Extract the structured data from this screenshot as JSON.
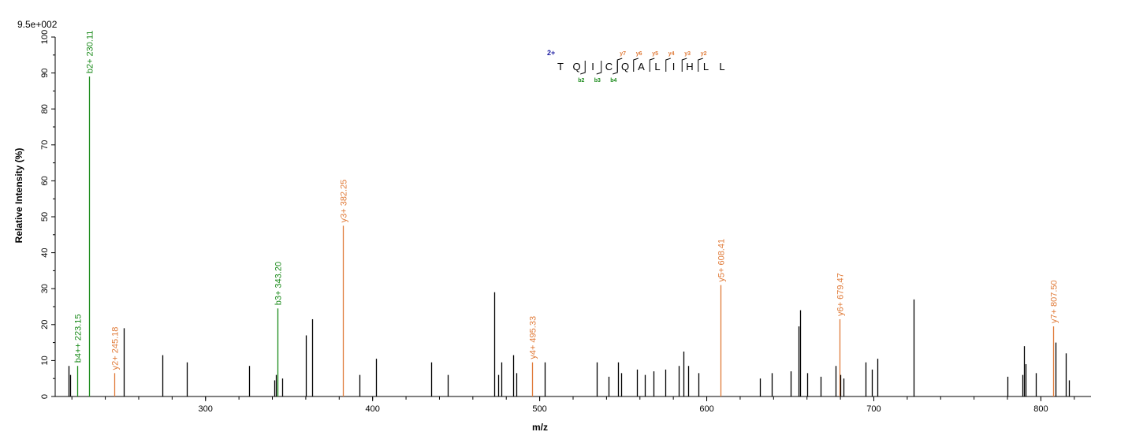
{
  "chart_data": {
    "type": "bar",
    "subtype": "mass-spectrum",
    "scale_label": "9.5e+002",
    "xlabel": "m/z",
    "ylabel": "Relative   Intensity (%)",
    "xlim": [
      210,
      830
    ],
    "ylim": [
      0,
      100
    ],
    "x_ticks": [
      300,
      400,
      500,
      600,
      700,
      800
    ],
    "y_ticks": [
      0,
      10,
      20,
      30,
      40,
      50,
      60,
      70,
      80,
      90,
      100
    ],
    "colors": {
      "b_ion": "#1a8a1a",
      "y_ion": "#e07b39",
      "unassigned": "#000000",
      "charge": "#1a1aa0"
    },
    "peaks": [
      {
        "mz": 218.0,
        "intensity": 8.5,
        "type": "unassigned"
      },
      {
        "mz": 219.0,
        "intensity": 6.0,
        "type": "unassigned"
      },
      {
        "mz": 223.15,
        "intensity": 8.5,
        "type": "b",
        "label": "b4++ 223.15"
      },
      {
        "mz": 230.11,
        "intensity": 89.0,
        "type": "b",
        "label": "b2+ 230.11"
      },
      {
        "mz": 245.18,
        "intensity": 6.5,
        "type": "y",
        "label": "y2+ 245.18"
      },
      {
        "mz": 251.0,
        "intensity": 19.0,
        "type": "unassigned"
      },
      {
        "mz": 274.0,
        "intensity": 11.5,
        "type": "unassigned"
      },
      {
        "mz": 289.0,
        "intensity": 9.5,
        "type": "unassigned"
      },
      {
        "mz": 326.0,
        "intensity": 8.5,
        "type": "unassigned"
      },
      {
        "mz": 341.0,
        "intensity": 4.5,
        "type": "unassigned"
      },
      {
        "mz": 342.0,
        "intensity": 6.0,
        "type": "unassigned"
      },
      {
        "mz": 343.2,
        "intensity": 24.5,
        "type": "b",
        "label": "b3+ 343.20"
      },
      {
        "mz": 346.0,
        "intensity": 5.0,
        "type": "unassigned"
      },
      {
        "mz": 360.0,
        "intensity": 17.0,
        "type": "unassigned"
      },
      {
        "mz": 364.0,
        "intensity": 21.5,
        "type": "unassigned"
      },
      {
        "mz": 382.25,
        "intensity": 47.5,
        "type": "y",
        "label": "y3+ 382.25"
      },
      {
        "mz": 392.0,
        "intensity": 6.0,
        "type": "unassigned"
      },
      {
        "mz": 402.0,
        "intensity": 10.5,
        "type": "unassigned"
      },
      {
        "mz": 435.0,
        "intensity": 9.5,
        "type": "unassigned"
      },
      {
        "mz": 445.0,
        "intensity": 6.0,
        "type": "unassigned"
      },
      {
        "mz": 473.0,
        "intensity": 29.0,
        "type": "unassigned"
      },
      {
        "mz": 475.0,
        "intensity": 6.0,
        "type": "unassigned"
      },
      {
        "mz": 477.0,
        "intensity": 9.5,
        "type": "unassigned"
      },
      {
        "mz": 484.0,
        "intensity": 11.5,
        "type": "unassigned"
      },
      {
        "mz": 486.0,
        "intensity": 6.5,
        "type": "unassigned"
      },
      {
        "mz": 495.33,
        "intensity": 9.5,
        "type": "y",
        "label": "y4+ 495.33"
      },
      {
        "mz": 503.0,
        "intensity": 9.5,
        "type": "unassigned"
      },
      {
        "mz": 534.0,
        "intensity": 9.5,
        "type": "unassigned"
      },
      {
        "mz": 541.0,
        "intensity": 5.5,
        "type": "unassigned"
      },
      {
        "mz": 547.0,
        "intensity": 9.5,
        "type": "unassigned"
      },
      {
        "mz": 549.0,
        "intensity": 6.5,
        "type": "unassigned"
      },
      {
        "mz": 558.0,
        "intensity": 7.5,
        "type": "unassigned"
      },
      {
        "mz": 563.0,
        "intensity": 6.0,
        "type": "unassigned"
      },
      {
        "mz": 568.0,
        "intensity": 7.0,
        "type": "unassigned"
      },
      {
        "mz": 575.0,
        "intensity": 7.5,
        "type": "unassigned"
      },
      {
        "mz": 583.0,
        "intensity": 8.5,
        "type": "unassigned"
      },
      {
        "mz": 586.0,
        "intensity": 12.5,
        "type": "unassigned"
      },
      {
        "mz": 589.0,
        "intensity": 8.5,
        "type": "unassigned"
      },
      {
        "mz": 595.0,
        "intensity": 6.5,
        "type": "unassigned"
      },
      {
        "mz": 608.41,
        "intensity": 31.0,
        "type": "y",
        "label": "y5+ 608.41"
      },
      {
        "mz": 632.0,
        "intensity": 5.0,
        "type": "unassigned"
      },
      {
        "mz": 639.0,
        "intensity": 6.5,
        "type": "unassigned"
      },
      {
        "mz": 650.0,
        "intensity": 7.0,
        "type": "unassigned"
      },
      {
        "mz": 655.0,
        "intensity": 19.5,
        "type": "unassigned"
      },
      {
        "mz": 656.0,
        "intensity": 24.0,
        "type": "unassigned"
      },
      {
        "mz": 660.0,
        "intensity": 6.5,
        "type": "unassigned"
      },
      {
        "mz": 668.0,
        "intensity": 5.5,
        "type": "unassigned"
      },
      {
        "mz": 677.0,
        "intensity": 8.5,
        "type": "unassigned"
      },
      {
        "mz": 679.47,
        "intensity": 21.5,
        "type": "y",
        "label": "y6+ 679.47"
      },
      {
        "mz": 680.0,
        "intensity": 6.0,
        "type": "unassigned"
      },
      {
        "mz": 682.0,
        "intensity": 5.0,
        "type": "unassigned"
      },
      {
        "mz": 695.0,
        "intensity": 9.5,
        "type": "unassigned"
      },
      {
        "mz": 699.0,
        "intensity": 7.5,
        "type": "unassigned"
      },
      {
        "mz": 702.0,
        "intensity": 10.5,
        "type": "unassigned"
      },
      {
        "mz": 724.0,
        "intensity": 27.0,
        "type": "unassigned"
      },
      {
        "mz": 780.0,
        "intensity": 5.5,
        "type": "unassigned"
      },
      {
        "mz": 789.0,
        "intensity": 6.0,
        "type": "unassigned"
      },
      {
        "mz": 790.0,
        "intensity": 14.0,
        "type": "unassigned"
      },
      {
        "mz": 791.0,
        "intensity": 9.0,
        "type": "unassigned"
      },
      {
        "mz": 797.0,
        "intensity": 6.5,
        "type": "unassigned"
      },
      {
        "mz": 807.5,
        "intensity": 19.5,
        "type": "y",
        "label": "y7+ 807.50"
      },
      {
        "mz": 809.0,
        "intensity": 15.0,
        "type": "unassigned"
      },
      {
        "mz": 815.0,
        "intensity": 12.0,
        "type": "unassigned"
      },
      {
        "mz": 817.0,
        "intensity": 4.5,
        "type": "unassigned"
      }
    ],
    "sequence": {
      "charge": "2+",
      "residues": [
        "T",
        "Q",
        "I",
        "C",
        "Q",
        "A",
        "L",
        "I",
        "H",
        "L",
        "L"
      ],
      "b_ions": [
        {
          "label": "b2",
          "after": 2
        },
        {
          "label": "b3",
          "after": 3
        },
        {
          "label": "b4",
          "after": 4
        }
      ],
      "y_ions": [
        {
          "label": "y7",
          "after": 4
        },
        {
          "label": "y6",
          "after": 5
        },
        {
          "label": "y5",
          "after": 6
        },
        {
          "label": "y4",
          "after": 7
        },
        {
          "label": "y3",
          "after": 8
        },
        {
          "label": "y2",
          "after": 9
        }
      ]
    }
  }
}
